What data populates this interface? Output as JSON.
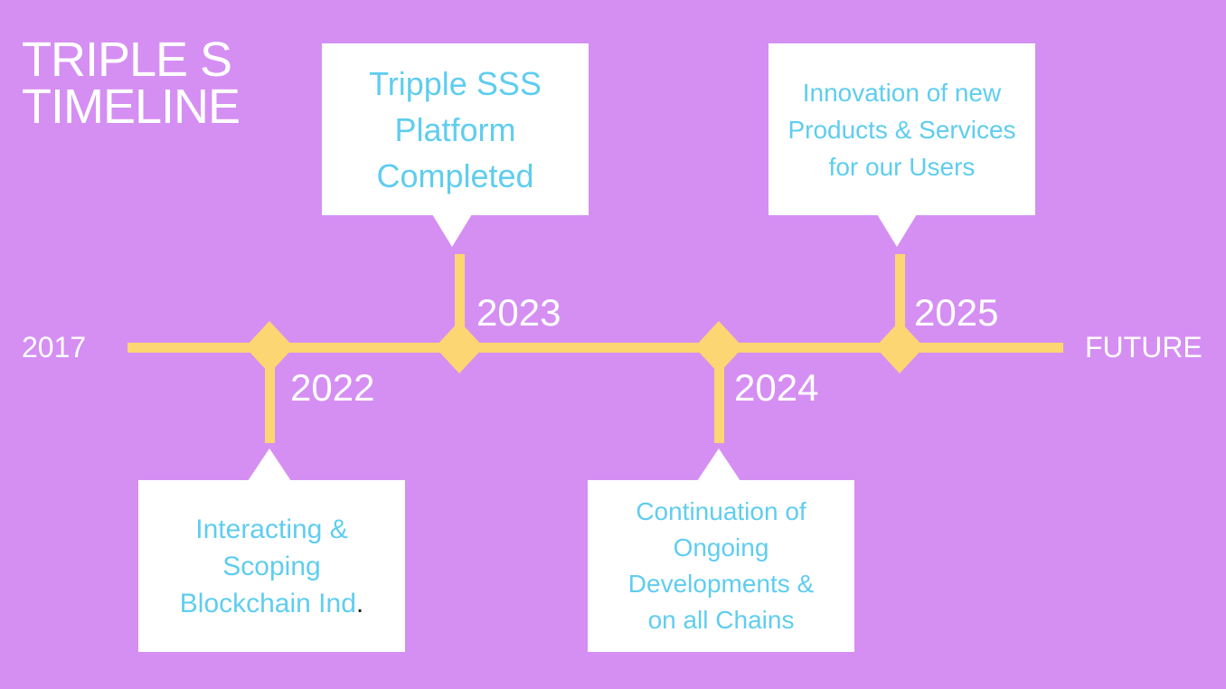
{
  "title": {
    "line1": "TRIPLE S",
    "line2": "TIMELINE"
  },
  "start_label": "2017",
  "end_label": "FUTURE",
  "milestones": [
    {
      "year": "2022",
      "text": "Interacting &\nScoping\nBlockchain Ind",
      "suffix": "."
    },
    {
      "year": "2023",
      "text": "Tripple SSS\nPlatform\nCompleted"
    },
    {
      "year": "2024",
      "text": "Continuation of\nOngoing\nDevelopments &\non all Chains"
    },
    {
      "year": "2025",
      "text": "Innovation of new\nProducts & Services\nfor our Users"
    }
  ],
  "colors": {
    "background": "#d58ff2",
    "line": "#fbd672",
    "card_text": "#5fcdef",
    "card_bg": "#ffffff",
    "label": "#ffffff"
  }
}
